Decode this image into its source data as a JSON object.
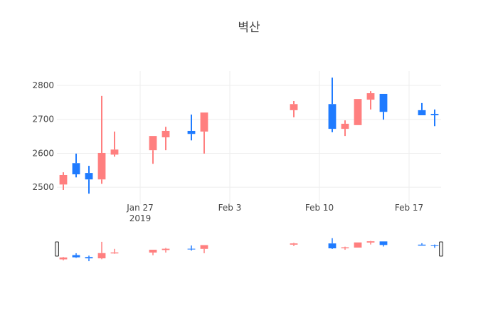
{
  "chart_data": {
    "type": "candlestick",
    "title": "벽산",
    "x": [
      "2019-01-21",
      "2019-01-22",
      "2019-01-23",
      "2019-01-24",
      "2019-01-25",
      "2019-01-28",
      "2019-01-29",
      "2019-01-31",
      "2019-02-01",
      "2019-02-08",
      "2019-02-11",
      "2019-02-12",
      "2019-02-13",
      "2019-02-14",
      "2019-02-15",
      "2019-02-18",
      "2019-02-19"
    ],
    "open": [
      2508,
      2571,
      2542,
      2523,
      2596,
      2609,
      2647,
      2666,
      2664,
      2727,
      2745,
      2672,
      2683,
      2758,
      2775,
      2727,
      2716
    ],
    "high": [
      2544,
      2599,
      2563,
      2769,
      2664,
      2651,
      2678,
      2714,
      2720,
      2754,
      2823,
      2697,
      2760,
      2783,
      2775,
      2748,
      2729
    ],
    "low": [
      2492,
      2529,
      2481,
      2510,
      2590,
      2569,
      2609,
      2638,
      2599,
      2706,
      2662,
      2651,
      2683,
      2729,
      2699,
      2712,
      2680
    ],
    "close": [
      2536,
      2538,
      2523,
      2601,
      2611,
      2651,
      2666,
      2657,
      2720,
      2745,
      2672,
      2687,
      2760,
      2777,
      2722,
      2712,
      2712
    ],
    "increasing_color": "#ff7f7f",
    "decreasing_color": "#1f7bff",
    "xlim": [
      "2019-01-20T12:00",
      "2019-02-19T12:00"
    ],
    "xticks": [
      {
        "value": "2019-01-27",
        "label": "Jan 27"
      },
      {
        "value": "2019-02-03",
        "label": "Feb 3"
      },
      {
        "value": "2019-02-10",
        "label": "Feb 10"
      },
      {
        "value": "2019-02-17",
        "label": "Feb 17"
      }
    ],
    "xtick_year": "2019",
    "ylim": [
      2450,
      2842
    ],
    "yticks": [
      2500,
      2600,
      2700,
      2800
    ],
    "grid": true,
    "rangeslider": true
  }
}
